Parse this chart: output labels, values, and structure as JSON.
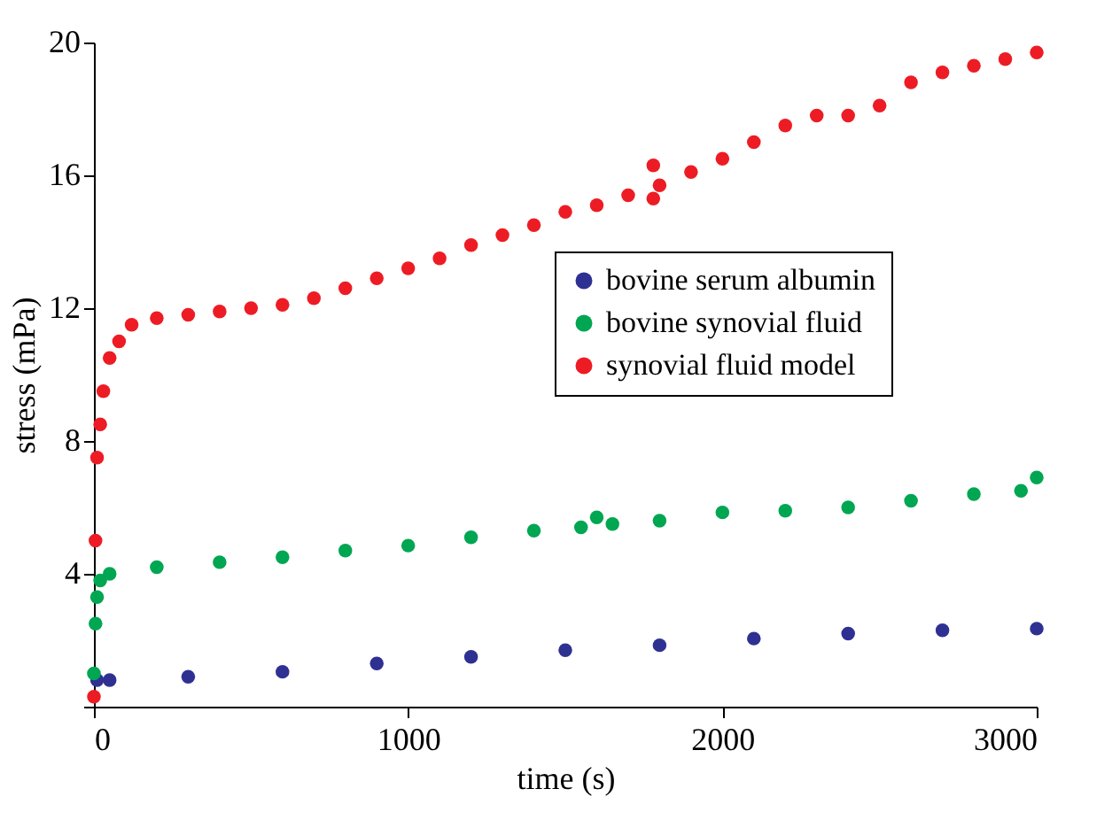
{
  "chart_data": {
    "type": "scatter",
    "xlabel": "time (s)",
    "ylabel": "stress (mPa)",
    "xlim": [
      0,
      3000
    ],
    "xticks": [
      0,
      1000,
      2000,
      3000
    ],
    "ylim": [
      0,
      20
    ],
    "yticks": [
      {
        "value": 0,
        "label": null
      },
      4,
      8,
      12,
      16,
      20
    ],
    "grid": false,
    "legend": "right",
    "marker": "circle",
    "series": [
      {
        "name": "bovine serum albumin",
        "color": "#2e3192",
        "x": [
          10,
          50,
          300,
          600,
          900,
          1200,
          1500,
          1800,
          2100,
          2400,
          2700,
          3000
        ],
        "values": [
          0.8,
          0.8,
          0.9,
          1.05,
          1.3,
          1.5,
          1.7,
          1.85,
          2.05,
          2.2,
          2.3,
          2.35
        ]
      },
      {
        "name": "bovine synovial fluid",
        "color": "#00a651",
        "x": [
          0,
          5,
          10,
          20,
          50,
          200,
          400,
          600,
          800,
          1000,
          1200,
          1400,
          1550,
          1600,
          1650,
          1800,
          2000,
          2200,
          2400,
          2600,
          2800,
          2950,
          3000
        ],
        "values": [
          1.0,
          2.5,
          3.3,
          3.8,
          4.0,
          4.2,
          4.35,
          4.5,
          4.7,
          4.85,
          5.1,
          5.3,
          5.4,
          5.7,
          5.5,
          5.6,
          5.85,
          5.9,
          6.0,
          6.2,
          6.4,
          6.5,
          6.9
        ]
      },
      {
        "name": "synovial fluid model",
        "color": "#ed1c24",
        "x": [
          0,
          5,
          10,
          20,
          30,
          50,
          80,
          120,
          200,
          300,
          400,
          500,
          600,
          700,
          800,
          900,
          1000,
          1100,
          1200,
          1300,
          1400,
          1500,
          1600,
          1700,
          1780,
          1780,
          1800,
          1900,
          2000,
          2100,
          2200,
          2300,
          2400,
          2500,
          2600,
          2700,
          2800,
          2900,
          3000
        ],
        "values": [
          0.3,
          5,
          7.5,
          8.5,
          9.5,
          10.5,
          11,
          11.5,
          11.7,
          11.8,
          11.9,
          12,
          12.1,
          12.3,
          12.6,
          12.9,
          13.2,
          13.5,
          13.9,
          14.2,
          14.5,
          14.9,
          15.1,
          15.4,
          16.3,
          15.3,
          15.7,
          16.1,
          16.5,
          17,
          17.5,
          17.8,
          17.8,
          18.1,
          18.8,
          19.1,
          19.3,
          19.5,
          19.7
        ]
      }
    ]
  }
}
